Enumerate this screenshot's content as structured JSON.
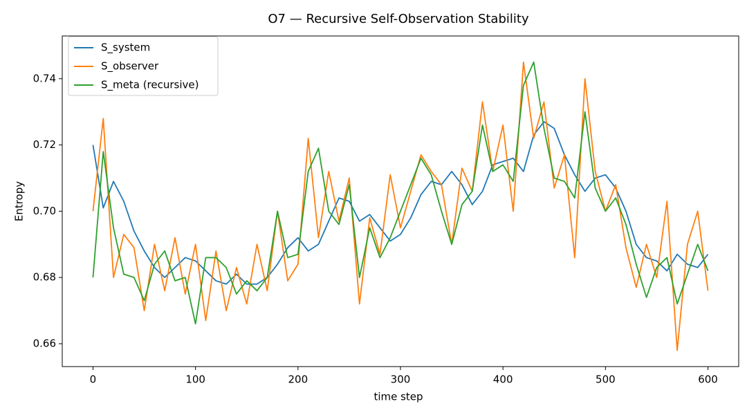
{
  "chart_data": {
    "type": "line",
    "title": "O7 — Recursive Self-Observation Stability",
    "xlabel": "time step",
    "ylabel": "Entropy",
    "x": [
      0,
      10,
      20,
      30,
      40,
      50,
      60,
      70,
      80,
      90,
      100,
      110,
      120,
      130,
      140,
      150,
      160,
      170,
      180,
      190,
      200,
      210,
      220,
      230,
      240,
      250,
      260,
      270,
      280,
      290,
      300,
      310,
      320,
      330,
      340,
      350,
      360,
      370,
      380,
      390,
      400,
      410,
      420,
      430,
      440,
      450,
      460,
      470,
      480,
      490,
      500,
      510,
      520,
      530,
      540,
      550,
      560,
      570,
      580,
      590,
      600
    ],
    "series": [
      {
        "name": "S_system",
        "color": "#1f77b4",
        "values": [
          0.72,
          0.701,
          0.709,
          0.703,
          0.694,
          0.688,
          0.683,
          0.68,
          0.683,
          0.686,
          0.685,
          0.682,
          0.679,
          0.678,
          0.681,
          0.678,
          0.678,
          0.68,
          0.684,
          0.689,
          0.692,
          0.688,
          0.69,
          0.697,
          0.704,
          0.703,
          0.697,
          0.699,
          0.695,
          0.691,
          0.693,
          0.698,
          0.705,
          0.709,
          0.708,
          0.712,
          0.708,
          0.702,
          0.706,
          0.714,
          0.715,
          0.716,
          0.712,
          0.723,
          0.727,
          0.725,
          0.717,
          0.711,
          0.706,
          0.71,
          0.711,
          0.707,
          0.7,
          0.69,
          0.686,
          0.685,
          0.682,
          0.687,
          0.684,
          0.683,
          0.687
        ]
      },
      {
        "name": "S_observer",
        "color": "#ff7f0e",
        "values": [
          0.7,
          0.728,
          0.68,
          0.693,
          0.689,
          0.67,
          0.69,
          0.676,
          0.692,
          0.675,
          0.69,
          0.667,
          0.688,
          0.67,
          0.683,
          0.672,
          0.69,
          0.676,
          0.7,
          0.679,
          0.684,
          0.722,
          0.692,
          0.712,
          0.697,
          0.71,
          0.672,
          0.698,
          0.687,
          0.711,
          0.695,
          0.706,
          0.717,
          0.712,
          0.708,
          0.69,
          0.713,
          0.706,
          0.733,
          0.712,
          0.726,
          0.7,
          0.745,
          0.722,
          0.733,
          0.707,
          0.717,
          0.686,
          0.74,
          0.712,
          0.7,
          0.708,
          0.689,
          0.677,
          0.69,
          0.68,
          0.703,
          0.658,
          0.69,
          0.7,
          0.676
        ]
      },
      {
        "name": "S_meta (recursive)",
        "color": "#2ca02c",
        "values": [
          0.68,
          0.718,
          0.695,
          0.681,
          0.68,
          0.673,
          0.684,
          0.688,
          0.679,
          0.68,
          0.666,
          0.686,
          0.686,
          0.683,
          0.675,
          0.679,
          0.676,
          0.68,
          0.7,
          0.686,
          0.687,
          0.712,
          0.719,
          0.7,
          0.696,
          0.708,
          0.68,
          0.695,
          0.686,
          0.692,
          0.7,
          0.708,
          0.716,
          0.711,
          0.7,
          0.69,
          0.702,
          0.706,
          0.726,
          0.712,
          0.714,
          0.709,
          0.738,
          0.745,
          0.725,
          0.71,
          0.709,
          0.704,
          0.73,
          0.707,
          0.7,
          0.704,
          0.696,
          0.684,
          0.674,
          0.683,
          0.686,
          0.672,
          0.681,
          0.69,
          0.682
        ]
      }
    ],
    "xlim": [
      -30,
      630
    ],
    "xticks": [
      0,
      100,
      200,
      300,
      400,
      500,
      600
    ],
    "ylim": [
      0.6531,
      0.7529
    ],
    "yticks": [
      0.66,
      0.68,
      {
        "value": 0.7,
        "label": "0.70"
      },
      0.72,
      0.74
    ],
    "legend": "upper left",
    "grid": false
  }
}
